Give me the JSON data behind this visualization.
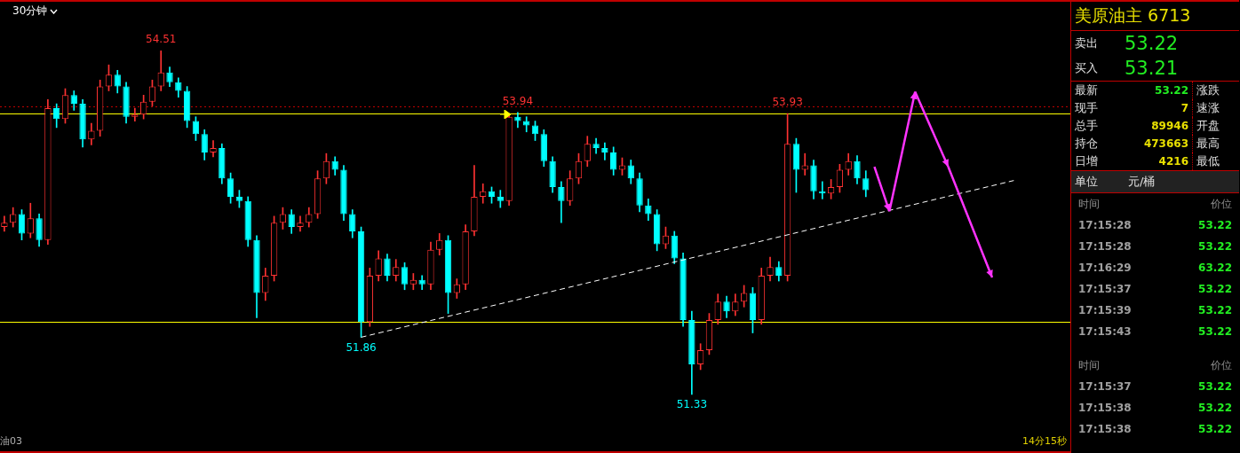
{
  "chart_data": [
    {
      "type": "candlestick",
      "title": "30分钟",
      "legend": false,
      "categories": [
        null,
        null,
        null,
        null,
        null,
        null,
        null,
        null,
        null,
        null,
        null,
        null,
        null,
        null,
        null,
        null,
        null,
        null,
        null,
        null,
        null,
        null,
        null,
        null,
        null,
        null,
        null,
        null,
        null,
        null,
        null,
        null,
        null,
        null,
        null,
        null,
        null,
        null,
        null,
        null,
        null,
        null,
        null,
        null,
        null,
        null,
        null,
        null,
        null,
        null,
        null,
        null,
        null,
        null,
        null,
        null,
        null,
        null,
        null,
        null,
        null,
        null,
        null,
        null,
        null,
        null,
        null,
        null,
        null,
        null,
        null,
        null,
        null,
        null,
        null,
        null,
        null,
        null,
        null,
        null,
        null,
        null,
        null,
        null,
        null,
        null,
        null,
        null,
        null,
        null,
        null,
        null,
        null,
        null,
        null,
        null,
        null,
        null,
        null,
        null,
        null,
        null,
        null,
        null,
        null,
        null,
        null,
        null,
        null,
        null,
        null,
        null,
        null,
        null,
        null,
        null,
        null,
        null,
        null,
        null,
        null,
        null,
        null
      ],
      "ohlc": [
        [
          52.88,
          52.98,
          52.84,
          52.92
        ],
        [
          52.92,
          53.06,
          52.88,
          53.0
        ],
        [
          53.0,
          53.04,
          52.76,
          52.82
        ],
        [
          52.82,
          53.1,
          52.78,
          52.96
        ],
        [
          52.96,
          53.0,
          52.7,
          52.76
        ],
        [
          52.76,
          54.06,
          52.72,
          53.98
        ],
        [
          53.98,
          54.02,
          53.8,
          53.88
        ],
        [
          53.88,
          54.16,
          53.84,
          54.1
        ],
        [
          54.1,
          54.14,
          53.96,
          54.02
        ],
        [
          54.02,
          54.06,
          53.62,
          53.69
        ],
        [
          53.69,
          53.84,
          53.64,
          53.77
        ],
        [
          53.77,
          54.24,
          53.72,
          54.18
        ],
        [
          54.18,
          54.38,
          54.14,
          54.29
        ],
        [
          54.29,
          54.33,
          54.12,
          54.18
        ],
        [
          54.18,
          54.22,
          53.84,
          53.9
        ],
        [
          53.9,
          53.98,
          53.86,
          53.92
        ],
        [
          53.92,
          54.1,
          53.88,
          54.04
        ],
        [
          54.04,
          54.24,
          54.0,
          54.18
        ],
        [
          54.18,
          54.51,
          54.14,
          54.31
        ],
        [
          54.31,
          54.36,
          54.18,
          54.22
        ],
        [
          54.22,
          54.26,
          54.08,
          54.14
        ],
        [
          54.14,
          54.18,
          53.8,
          53.86
        ],
        [
          53.86,
          53.9,
          53.68,
          53.74
        ],
        [
          53.74,
          53.78,
          53.5,
          53.57
        ],
        [
          53.57,
          53.68,
          53.53,
          53.61
        ],
        [
          53.61,
          53.65,
          53.28,
          53.33
        ],
        [
          53.33,
          53.38,
          53.1,
          53.16
        ],
        [
          53.16,
          53.22,
          53.06,
          53.12
        ],
        [
          53.12,
          53.16,
          52.7,
          52.76
        ],
        [
          52.76,
          52.8,
          52.04,
          52.27
        ],
        [
          52.27,
          52.5,
          52.2,
          52.43
        ],
        [
          52.43,
          52.98,
          52.38,
          52.92
        ],
        [
          52.92,
          53.06,
          52.86,
          53.0
        ],
        [
          53.0,
          53.04,
          52.82,
          52.88
        ],
        [
          52.88,
          52.98,
          52.84,
          52.92
        ],
        [
          52.92,
          53.06,
          52.88,
          53.0
        ],
        [
          53.0,
          53.4,
          52.96,
          53.33
        ],
        [
          53.33,
          53.56,
          53.28,
          53.49
        ],
        [
          53.49,
          53.53,
          53.36,
          53.41
        ],
        [
          53.41,
          53.45,
          52.94,
          53.0
        ],
        [
          53.0,
          53.04,
          52.78,
          52.84
        ],
        [
          52.84,
          52.88,
          51.86,
          52.0
        ],
        [
          52.0,
          52.5,
          51.96,
          52.43
        ],
        [
          52.43,
          52.66,
          52.38,
          52.59
        ],
        [
          52.59,
          52.63,
          52.38,
          52.43
        ],
        [
          52.43,
          52.58,
          52.38,
          52.51
        ],
        [
          52.51,
          52.55,
          52.3,
          52.35
        ],
        [
          52.35,
          52.45,
          52.3,
          52.39
        ],
        [
          52.39,
          52.43,
          52.3,
          52.35
        ],
        [
          52.35,
          52.74,
          52.3,
          52.67
        ],
        [
          52.67,
          52.82,
          52.62,
          52.76
        ],
        [
          52.76,
          52.8,
          52.08,
          52.27
        ],
        [
          52.27,
          52.4,
          52.22,
          52.35
        ],
        [
          52.35,
          52.9,
          52.3,
          52.84
        ],
        [
          52.84,
          53.45,
          52.8,
          53.16
        ],
        [
          53.16,
          53.28,
          53.1,
          53.21
        ],
        [
          53.21,
          53.25,
          53.1,
          53.16
        ],
        [
          53.16,
          53.22,
          53.06,
          53.12
        ],
        [
          53.12,
          53.92,
          53.08,
          53.9
        ],
        [
          53.9,
          53.94,
          53.8,
          53.86
        ],
        [
          53.86,
          53.9,
          53.76,
          53.82
        ],
        [
          53.82,
          53.86,
          53.68,
          53.74
        ],
        [
          53.74,
          53.78,
          53.44,
          53.49
        ],
        [
          53.49,
          53.53,
          53.2,
          53.25
        ],
        [
          53.25,
          53.3,
          52.92,
          53.12
        ],
        [
          53.12,
          53.4,
          53.08,
          53.33
        ],
        [
          53.33,
          53.56,
          53.28,
          53.49
        ],
        [
          53.49,
          53.72,
          53.44,
          53.65
        ],
        [
          53.65,
          53.7,
          53.56,
          53.61
        ],
        [
          53.61,
          53.66,
          53.5,
          53.57
        ],
        [
          53.57,
          53.62,
          53.36,
          53.41
        ],
        [
          53.41,
          53.52,
          53.36,
          53.45
        ],
        [
          53.45,
          53.5,
          53.28,
          53.33
        ],
        [
          53.33,
          53.38,
          53.02,
          53.08
        ],
        [
          53.08,
          53.14,
          52.94,
          53.0
        ],
        [
          53.0,
          53.04,
          52.66,
          52.72
        ],
        [
          52.72,
          52.88,
          52.68,
          52.8
        ],
        [
          52.8,
          52.84,
          52.54,
          52.59
        ],
        [
          52.59,
          52.64,
          51.96,
          52.02
        ],
        [
          52.02,
          52.1,
          51.33,
          51.61
        ],
        [
          51.61,
          51.8,
          51.56,
          51.74
        ],
        [
          51.74,
          52.08,
          51.7,
          52.02
        ],
        [
          52.02,
          52.26,
          51.98,
          52.19
        ],
        [
          52.19,
          52.24,
          52.04,
          52.1
        ],
        [
          52.1,
          52.26,
          52.06,
          52.19
        ],
        [
          52.19,
          52.34,
          52.14,
          52.27
        ],
        [
          52.27,
          52.32,
          51.9,
          52.02
        ],
        [
          52.02,
          52.5,
          51.98,
          52.43
        ],
        [
          52.43,
          52.6,
          52.38,
          52.51
        ],
        [
          52.51,
          52.56,
          52.38,
          52.43
        ],
        [
          52.43,
          53.93,
          52.38,
          53.65
        ],
        [
          53.65,
          53.7,
          53.2,
          53.41
        ],
        [
          53.41,
          53.56,
          53.36,
          53.45
        ],
        [
          53.45,
          53.5,
          53.14,
          53.21
        ],
        [
          53.21,
          53.3,
          53.14,
          53.19
        ],
        [
          53.19,
          53.32,
          53.14,
          53.25
        ],
        [
          53.25,
          53.46,
          53.2,
          53.41
        ],
        [
          53.41,
          53.56,
          53.36,
          53.49
        ],
        [
          53.49,
          53.54,
          53.28,
          53.33
        ],
        [
          53.33,
          53.4,
          53.16,
          53.22
        ],
        null,
        null,
        null,
        null,
        null,
        null,
        null,
        null,
        null,
        null,
        null,
        null,
        null,
        null,
        null,
        null,
        null,
        null,
        null,
        null,
        null,
        null,
        null
      ],
      "series": [
        {
          "type": "line",
          "color": "#ffffff",
          "line_style": "dashed",
          "values": [
            null,
            null,
            null,
            null,
            null,
            null,
            null,
            null,
            null,
            null,
            null,
            null,
            null,
            null,
            null,
            null,
            null,
            null,
            null,
            null,
            null,
            null,
            null,
            null,
            null,
            null,
            null,
            null,
            null,
            null,
            null,
            null,
            null,
            null,
            null,
            null,
            null,
            null,
            null,
            null,
            null,
            51.86,
            null,
            null,
            null,
            null,
            null,
            null,
            null,
            null,
            null,
            null,
            null,
            null,
            null,
            null,
            null,
            null,
            null,
            null,
            null,
            null,
            null,
            null,
            null,
            null,
            null,
            null,
            null,
            null,
            null,
            null,
            null,
            null,
            null,
            null,
            null,
            null,
            null,
            null,
            null,
            null,
            null,
            null,
            null,
            null,
            null,
            null,
            null,
            null,
            null,
            null,
            null,
            null,
            null,
            null,
            null,
            null,
            null,
            null,
            null,
            null,
            null,
            null,
            null,
            null,
            null,
            null,
            null,
            null,
            null,
            null,
            null,
            null,
            null,
            null,
            53.31,
            null,
            null,
            null,
            null,
            null,
            null
          ]
        }
      ],
      "ref_lines": [
        {
          "axis": "y",
          "value": 54.0,
          "color": "#c00000",
          "line_style": "dotted"
        },
        {
          "axis": "y",
          "value": 53.93,
          "color": "#ffff00",
          "line_style": "solid"
        },
        {
          "axis": "y",
          "value": 52.0,
          "color": "#ffff00",
          "line_style": "solid"
        }
      ],
      "annotations": [
        {
          "text": "54.51",
          "y": 54.51
        },
        {
          "text": "53.94",
          "y": 53.94
        },
        {
          "text": "53.93",
          "y": 53.93
        },
        {
          "text": "51.86",
          "y": 51.86
        },
        {
          "text": "51.33",
          "y": 51.33
        },
        "油03",
        "14分15秒"
      ]
    },
    {
      "type": "other",
      "title": "美原油主 6713",
      "annotations": [
        "卖出",
        "53.22",
        "买入",
        "53.21",
        "最新",
        "53.22",
        "涨跌",
        "现手",
        "7",
        "速涨",
        "总手",
        "89946",
        "开盘",
        "持仓",
        "473663",
        "最高",
        "日增",
        "4216",
        "最低",
        "单位",
        "元/桶",
        "时间",
        "价位",
        "17:15:28",
        "53.22",
        "17:15:28",
        "53.22",
        "17:16:29",
        "63.22",
        "17:15:37",
        "53.22",
        "17:15:39",
        "53.22",
        "17:15:43",
        "53.22",
        "时间",
        "价位",
        "17:15:37",
        "53.22",
        "17:15:38",
        "53.22",
        "17:15:38",
        "53.22"
      ]
    }
  ]
}
